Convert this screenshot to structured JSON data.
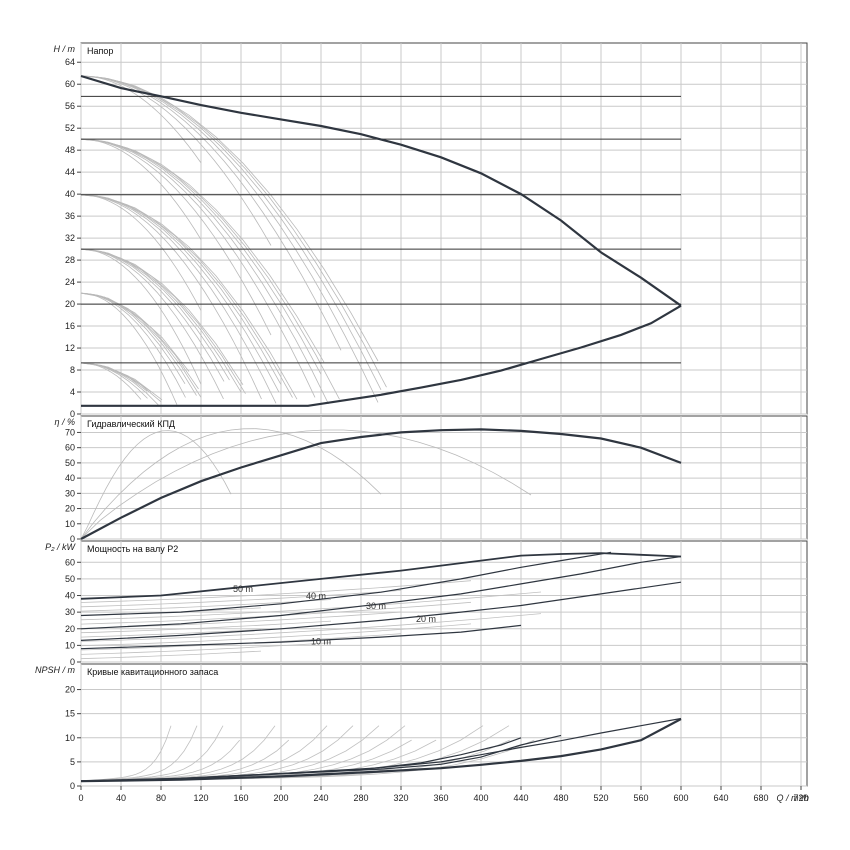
{
  "chart_data": {
    "type": "line",
    "x_axis": {
      "label": "Q / m³/h",
      "range": [
        0,
        726
      ],
      "ticks": [
        0,
        40,
        80,
        120,
        160,
        200,
        240,
        280,
        320,
        360,
        400,
        440,
        480,
        520,
        560,
        600,
        640,
        680,
        720
      ],
      "tick_labels": [
        "0",
        "40",
        "80",
        "120",
        "160",
        "200",
        "240",
        "280",
        "320",
        "360",
        "400",
        "440",
        "480",
        "520",
        "560",
        "600",
        "640",
        "680",
        "720"
      ]
    },
    "grid": true,
    "panels": [
      {
        "key": "head",
        "title": "Напор",
        "ylabel": "H / m",
        "ylim": [
          0,
          67.5
        ],
        "yticks": [
          0,
          4,
          8,
          12,
          16,
          20,
          24,
          28,
          32,
          36,
          40,
          44,
          48,
          52,
          56,
          60,
          64
        ],
        "ytick_labels": [
          "0",
          "4",
          "8",
          "12",
          "16",
          "20",
          "24",
          "28",
          "32",
          "36",
          "40",
          "44",
          "48",
          "52",
          "56",
          "60",
          "64"
        ],
        "envelope": {
          "upper": [
            [
              0,
              61.5
            ],
            [
              40,
              59.3
            ],
            [
              80,
              57.8
            ],
            [
              120,
              56.2
            ],
            [
              160,
              54.8
            ],
            [
              200,
              53.6
            ],
            [
              240,
              52.4
            ],
            [
              280,
              50.9
            ],
            [
              320,
              49.0
            ],
            [
              360,
              46.7
            ],
            [
              400,
              43.8
            ],
            [
              440,
              40.0
            ],
            [
              480,
              35.2
            ],
            [
              520,
              29.4
            ],
            [
              560,
              24.8
            ],
            [
              600,
              19.7
            ]
          ],
          "lower": [
            [
              0,
              1.5
            ],
            [
              40,
              1.5
            ],
            [
              80,
              1.5
            ],
            [
              120,
              1.5
            ],
            [
              160,
              1.5
            ],
            [
              200,
              1.5
            ],
            [
              227,
              1.5
            ],
            [
              260,
              2.4
            ],
            [
              300,
              3.5
            ],
            [
              340,
              4.8
            ],
            [
              380,
              6.2
            ],
            [
              420,
              7.9
            ],
            [
              460,
              10.0
            ],
            [
              500,
              12.1
            ],
            [
              540,
              14.4
            ],
            [
              570,
              16.5
            ],
            [
              600,
              19.7
            ]
          ]
        },
        "horizontal_lines": [
          9.3,
          20.0,
          30.0,
          39.9,
          50.0,
          57.8
        ]
      },
      {
        "key": "efficiency",
        "title": "Гидравлический КПД",
        "ylabel": "η / %",
        "ylim": [
          0,
          80.8
        ],
        "yticks": [
          0,
          10,
          20,
          30,
          40,
          50,
          60,
          70
        ],
        "ytick_labels": [
          "0",
          "10",
          "20",
          "30",
          "40",
          "50",
          "60",
          "70"
        ],
        "series": [
          {
            "points": [
              [
                0,
                0
              ],
              [
                40,
                14
              ],
              [
                80,
                27
              ],
              [
                120,
                38
              ],
              [
                160,
                47
              ],
              [
                200,
                55
              ],
              [
                240,
                63
              ],
              [
                280,
                67
              ],
              [
                320,
                70
              ],
              [
                360,
                71.5
              ],
              [
                400,
                72
              ],
              [
                440,
                71
              ],
              [
                480,
                69
              ],
              [
                520,
                66
              ],
              [
                560,
                60
              ],
              [
                600,
                50
              ]
            ]
          }
        ]
      },
      {
        "key": "power",
        "title": "Мощность на валу P2",
        "ylabel": "P₂ / kW",
        "ylim": [
          0,
          72.8
        ],
        "yticks": [
          0,
          10,
          20,
          30,
          40,
          50,
          60
        ],
        "ytick_labels": [
          "0",
          "10",
          "20",
          "30",
          "40",
          "50",
          "60"
        ],
        "series": [
          {
            "points": [
              [
                0,
                38
              ],
              [
                80,
                40
              ],
              [
                160,
                45
              ],
              [
                240,
                50
              ],
              [
                320,
                55
              ],
              [
                400,
                61
              ],
              [
                440,
                64
              ],
              [
                480,
                65
              ],
              [
                520,
                65.5
              ],
              [
                560,
                64.5
              ],
              [
                600,
                63.5
              ]
            ]
          },
          {
            "points": [
              [
                0,
                28
              ],
              [
                100,
                30
              ],
              [
                200,
                35
              ],
              [
                300,
                42
              ],
              [
                380,
                50
              ],
              [
                440,
                57
              ],
              [
                480,
                61
              ],
              [
                530,
                66
              ]
            ]
          },
          {
            "points": [
              [
                0,
                20
              ],
              [
                100,
                23
              ],
              [
                200,
                28
              ],
              [
                300,
                35
              ],
              [
                380,
                41
              ],
              [
                440,
                47
              ],
              [
                500,
                53
              ],
              [
                560,
                60
              ],
              [
                600,
                63.5
              ]
            ]
          },
          {
            "points": [
              [
                0,
                13
              ],
              [
                100,
                16
              ],
              [
                200,
                20
              ],
              [
                300,
                25
              ],
              [
                380,
                30
              ],
              [
                440,
                34
              ],
              [
                520,
                41
              ],
              [
                600,
                48
              ]
            ]
          },
          {
            "points": [
              [
                0,
                8
              ],
              [
                100,
                10
              ],
              [
                200,
                12
              ],
              [
                300,
                15
              ],
              [
                380,
                18
              ],
              [
                440,
                22
              ]
            ]
          }
        ],
        "labels": [
          {
            "text": "50 m",
            "q": 152,
            "v": 42
          },
          {
            "text": "40 m",
            "q": 225,
            "v": 38
          },
          {
            "text": "30 m",
            "q": 285,
            "v": 32
          },
          {
            "text": "20 m",
            "q": 335,
            "v": 24
          },
          {
            "text": "10 m",
            "q": 230,
            "v": 10.5
          }
        ]
      },
      {
        "key": "npsh",
        "title": "Кривые кавитационного запаса",
        "ylabel": "NPSH / m",
        "ylim": [
          0,
          25.3
        ],
        "yticks": [
          0,
          5,
          10,
          15,
          20
        ],
        "ytick_labels": [
          "0",
          "5",
          "10",
          "15",
          "20"
        ],
        "series": [
          {
            "points": [
              [
                0,
                1
              ],
              [
                100,
                1.3
              ],
              [
                200,
                2
              ],
              [
                300,
                3
              ],
              [
                360,
                3.7
              ],
              [
                400,
                4.4
              ],
              [
                440,
                5.2
              ],
              [
                480,
                6.2
              ],
              [
                520,
                7.6
              ],
              [
                560,
                9.5
              ],
              [
                600,
                13.9
              ]
            ]
          },
          {
            "points": [
              [
                0,
                1.1
              ],
              [
                100,
                1.6
              ],
              [
                200,
                2.6
              ],
              [
                300,
                3.8
              ],
              [
                360,
                5
              ],
              [
                400,
                6.5
              ],
              [
                440,
                8
              ],
              [
                480,
                9.4
              ],
              [
                520,
                11
              ],
              [
                560,
                12.5
              ],
              [
                600,
                14
              ]
            ]
          },
          {
            "points": [
              [
                0,
                1
              ],
              [
                100,
                1.5
              ],
              [
                200,
                2.5
              ],
              [
                300,
                3.5
              ],
              [
                360,
                4.5
              ],
              [
                400,
                6
              ],
              [
                440,
                8.5
              ],
              [
                480,
                10.5
              ]
            ]
          },
          {
            "points": [
              [
                0,
                1
              ],
              [
                100,
                1.6
              ],
              [
                200,
                2.6
              ],
              [
                280,
                3.4
              ],
              [
                340,
                4.8
              ],
              [
                380,
                6.5
              ],
              [
                420,
                8.5
              ],
              [
                440,
                10
              ]
            ]
          }
        ]
      }
    ]
  }
}
